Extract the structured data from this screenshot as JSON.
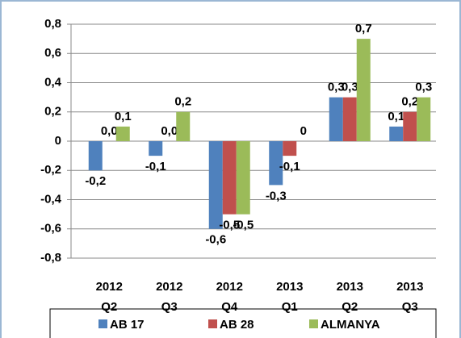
{
  "chart_data": {
    "type": "bar",
    "categories": [
      "2012 Q2",
      "2012 Q3",
      "2012 Q4",
      "2013 Q1",
      "2013 Q2",
      "2013 Q3"
    ],
    "series": [
      {
        "name": "AB 17",
        "color": "#4f81bd",
        "values": [
          -0.2,
          -0.1,
          -0.6,
          -0.3,
          0.3,
          0.1
        ],
        "value_labels": [
          "-0,2",
          "-0,1",
          "-0,6",
          "-0,3",
          "0,3",
          "0,1"
        ]
      },
      {
        "name": "AB 28",
        "color": "#c0504d",
        "values": [
          0.0,
          0.0,
          -0.5,
          -0.1,
          0.3,
          0.2
        ],
        "value_labels": [
          "0,0",
          "0,0",
          "-0,5",
          "-0,1",
          "0,3",
          "0,2"
        ]
      },
      {
        "name": "ALMANYA",
        "color": "#9bbb59",
        "values": [
          0.1,
          0.2,
          -0.5,
          0,
          0.7,
          0.3
        ],
        "value_labels": [
          "0,1",
          "0,2",
          "-0,5",
          "0",
          "0,7",
          "0,3"
        ]
      }
    ],
    "ylim": [
      -0.8,
      0.8
    ],
    "yticks": [
      {
        "value": -0.8,
        "label": "-0,8"
      },
      {
        "value": -0.6,
        "label": "-0,6"
      },
      {
        "value": -0.4,
        "label": "-0,4"
      },
      {
        "value": -0.2,
        "label": "-0,2"
      },
      0,
      {
        "value": 0.2,
        "label": "0,2"
      },
      {
        "value": 0.4,
        "label": "0,4"
      },
      {
        "value": 0.6,
        "label": "0,6"
      },
      {
        "value": 0.8,
        "label": "0,8"
      }
    ],
    "grid": true
  }
}
